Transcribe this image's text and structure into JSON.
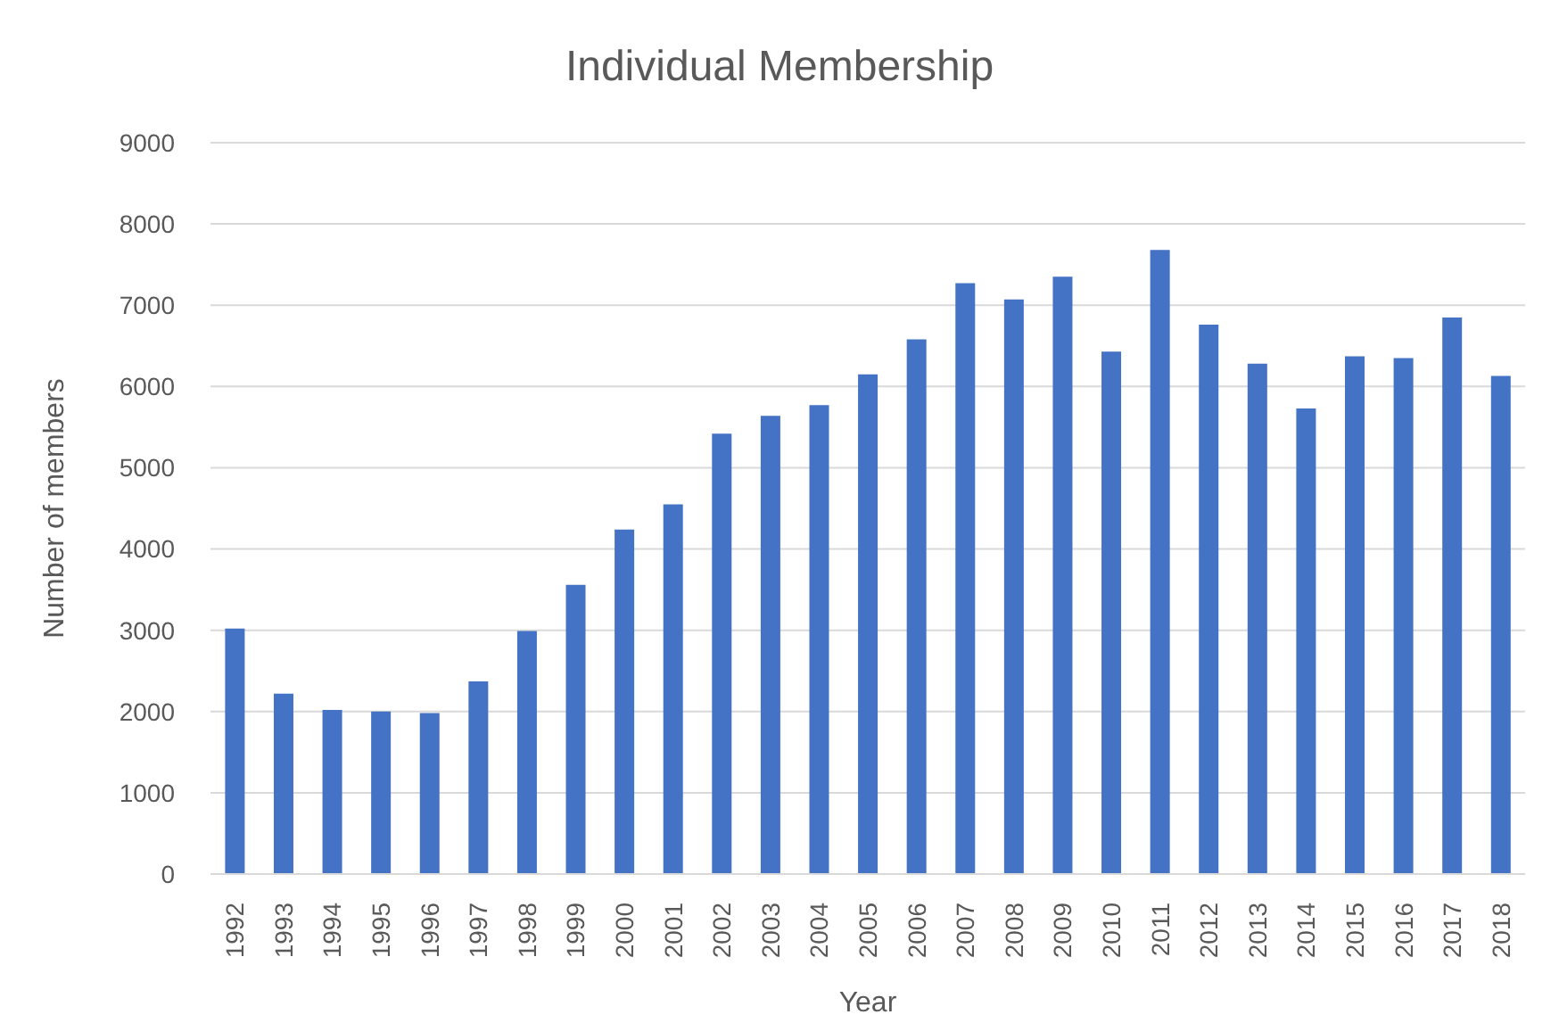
{
  "chart_data": {
    "type": "bar",
    "title": "Individual Membership",
    "xlabel": "Year",
    "ylabel": "Number of members",
    "categories": [
      "1992",
      "1993",
      "1994",
      "1995",
      "1996",
      "1997",
      "1998",
      "1999",
      "2000",
      "2001",
      "2002",
      "2003",
      "2004",
      "2005",
      "2006",
      "2007",
      "2008",
      "2009",
      "2010",
      "2011",
      "2012",
      "2013",
      "2014",
      "2015",
      "2016",
      "2017",
      "2018"
    ],
    "values": [
      3020,
      2220,
      2020,
      2000,
      1980,
      2370,
      2990,
      3560,
      4240,
      4550,
      5420,
      5640,
      5770,
      6150,
      6580,
      7270,
      7070,
      7350,
      6430,
      7680,
      6760,
      6280,
      5730,
      6370,
      6350,
      6850,
      6130
    ],
    "color": "#4472c4",
    "ylim": [
      0,
      9000
    ],
    "yticks": [
      0,
      1000,
      2000,
      3000,
      4000,
      5000,
      6000,
      7000,
      8000,
      9000
    ],
    "grid": "y"
  }
}
